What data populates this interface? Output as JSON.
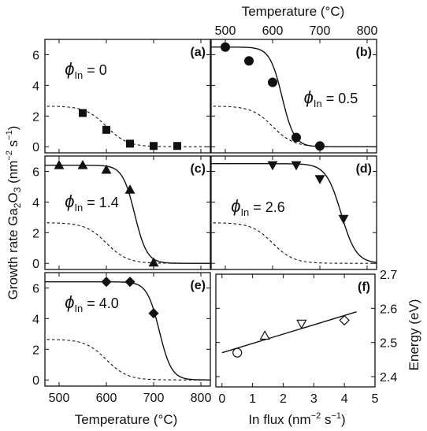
{
  "figure": {
    "top_axis_label": "Temperature (°C)",
    "bottom_axis_label": "Temperature (°C)",
    "y_axis_label_main": "Growth rate Ga",
    "y_axis_label_sub2": "2",
    "y_axis_label_O": "O",
    "y_axis_label_sub3": "3",
    "y_axis_label_unit_open": " (nm",
    "y_axis_label_unit_sup1": "−2",
    "y_axis_label_unit_mid": " s",
    "y_axis_label_unit_sup2": "−1",
    "y_axis_label_unit_close": ")",
    "f_xlabel_main": "In flux (nm",
    "f_xlabel_sup1": "−2",
    "f_xlabel_mid": " s",
    "f_xlabel_sup2": "−1",
    "f_xlabel_close": ")",
    "f_ylabel": "Energy (eV)",
    "phi_symbol": "ϕ",
    "phi_subscript": "In"
  },
  "chart_data": [
    {
      "panel": "(a)",
      "type": "scatter",
      "phi_value": "= 0",
      "xlim": [
        470,
        820
      ],
      "ylim": [
        -0.4,
        7.0
      ],
      "y_ticks": [
        0,
        2,
        4,
        6
      ],
      "marker": "square",
      "points": [
        [
          550,
          2.2
        ],
        [
          600,
          1.1
        ],
        [
          650,
          0.2
        ],
        [
          700,
          0.05
        ],
        [
          750,
          0.05
        ]
      ],
      "dashed_reference": {
        "plateau": 2.65,
        "midpoint": 600,
        "width": 22
      }
    },
    {
      "panel": "(b)",
      "type": "scatter",
      "phi_value": "= 0.5",
      "xlim": [
        470,
        820
      ],
      "ylim": [
        -0.4,
        7.0
      ],
      "x_ticks_top": [
        500,
        600,
        700,
        800
      ],
      "marker": "circle",
      "points": [
        [
          500,
          6.5
        ],
        [
          550,
          5.6
        ],
        [
          600,
          4.2
        ],
        [
          650,
          0.6
        ],
        [
          700,
          0.05
        ]
      ],
      "fit_curve": {
        "plateau": 6.5,
        "midpoint": 620,
        "width": 13
      },
      "dashed_reference": {
        "plateau": 2.65,
        "midpoint": 600,
        "width": 22
      }
    },
    {
      "panel": "(c)",
      "type": "scatter",
      "phi_value": "= 1.4",
      "xlim": [
        470,
        820
      ],
      "ylim": [
        -0.4,
        7.0
      ],
      "y_ticks": [
        0,
        2,
        4,
        6
      ],
      "marker": "triangle-up",
      "points": [
        [
          500,
          6.4
        ],
        [
          550,
          6.4
        ],
        [
          600,
          6.1
        ],
        [
          650,
          4.8
        ],
        [
          700,
          0.05
        ]
      ],
      "fit_curve": {
        "plateau": 6.4,
        "midpoint": 660,
        "width": 13
      },
      "dashed_reference": {
        "plateau": 2.65,
        "midpoint": 600,
        "width": 22
      }
    },
    {
      "panel": "(d)",
      "type": "scatter",
      "phi_value": "= 2.6",
      "xlim": [
        470,
        820
      ],
      "ylim": [
        -0.4,
        7.0
      ],
      "marker": "triangle-down",
      "points": [
        [
          600,
          6.4
        ],
        [
          650,
          6.4
        ],
        [
          700,
          5.5
        ],
        [
          750,
          2.9
        ]
      ],
      "fit_curve": {
        "plateau": 6.5,
        "midpoint": 745,
        "width": 16
      },
      "dashed_reference": {
        "plateau": 2.65,
        "midpoint": 600,
        "width": 22
      }
    },
    {
      "panel": "(e)",
      "type": "scatter",
      "phi_value": "= 4.0",
      "xlim": [
        470,
        820
      ],
      "ylim": [
        -0.4,
        7.0
      ],
      "x_ticks": [
        500,
        600,
        700,
        800
      ],
      "y_ticks": [
        0,
        2,
        4,
        6
      ],
      "marker": "diamond",
      "points": [
        [
          600,
          6.4
        ],
        [
          650,
          6.4
        ],
        [
          700,
          4.35
        ]
      ],
      "fit_curve": {
        "plateau": 6.4,
        "midpoint": 712,
        "width": 13
      },
      "dashed_reference": {
        "plateau": 2.65,
        "midpoint": 600,
        "width": 22
      }
    },
    {
      "panel": "(f)",
      "type": "scatter",
      "xlabel": "In flux (nm−2 s−1)",
      "ylabel": "Energy (eV)",
      "xlim": [
        -0.2,
        5.0
      ],
      "ylim": [
        2.37,
        2.7
      ],
      "x_ticks": [
        0,
        1,
        2,
        3,
        4,
        5
      ],
      "y_ticks": [
        2.4,
        2.5,
        2.6,
        2.7
      ],
      "points": [
        {
          "x": 0.5,
          "y": 2.47,
          "marker": "circle-open"
        },
        {
          "x": 1.4,
          "y": 2.52,
          "marker": "triangle-up-open"
        },
        {
          "x": 2.6,
          "y": 2.555,
          "marker": "triangle-down-open"
        },
        {
          "x": 4.0,
          "y": 2.565,
          "marker": "diamond-open"
        }
      ],
      "fit_line": {
        "x": [
          0,
          4.4
        ],
        "y": [
          2.47,
          2.59
        ]
      }
    }
  ]
}
